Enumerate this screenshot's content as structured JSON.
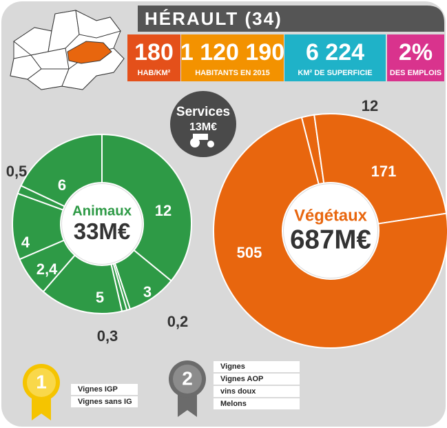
{
  "header": {
    "title": "HÉRAULT (34)"
  },
  "stats": [
    {
      "value": "180",
      "label": "HAB/KM²",
      "color": "#e4501a"
    },
    {
      "value": "1 120 190",
      "label": "HABITANTS EN 2015",
      "color": "#f39200"
    },
    {
      "value": "6 224",
      "label": "KM² DE SUPERFICIE",
      "color": "#1fb2c8"
    },
    {
      "value": "2%",
      "label": "DES EMPLOIS",
      "color": "#d9338d"
    }
  ],
  "services": {
    "label": "Services",
    "total": "13M€"
  },
  "animaux": {
    "label": "Animaux",
    "total": "33M€",
    "color": "#2e9a46",
    "values": [
      12,
      3,
      0.2,
      0.3,
      5,
      2.4,
      4,
      0.5,
      6
    ],
    "value_labels": [
      "12",
      "3",
      "0,2",
      "0,3",
      "5",
      "2,4",
      "4",
      "0,5",
      "6"
    ]
  },
  "vegetaux": {
    "label": "Végétaux",
    "total": "687M€",
    "color": "#e8660e",
    "values": [
      12,
      171,
      505
    ]
  },
  "rankings": [
    {
      "rank": "1",
      "items": [
        "Vignes IGP",
        "Vignes sans IG"
      ]
    },
    {
      "rank": "2",
      "items": [
        "Vignes",
        "Vignes AOP",
        "vins doux",
        "Melons"
      ]
    }
  ]
}
